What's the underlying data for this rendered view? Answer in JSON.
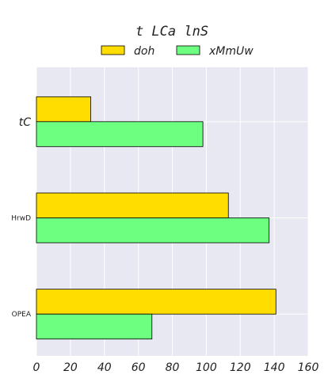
{
  "chart_data": {
    "type": "bar",
    "orientation": "horizontal",
    "title": "t LCa lnS",
    "categories": [
      "tC",
      "HrwD",
      "OPEA"
    ],
    "series": [
      {
        "name": "doh",
        "values": [
          32,
          113,
          141
        ],
        "color": "#ffdd00"
      },
      {
        "name": "xMmUw",
        "values": [
          98,
          137,
          68
        ],
        "color": "#6dff80"
      }
    ],
    "xlim": [
      0,
      160
    ],
    "xticks": [
      "0",
      "20",
      "40",
      "60",
      "80",
      "100",
      "120",
      "140",
      "160"
    ],
    "grid": true,
    "legend_position": "top-center",
    "background": "#e8e8f2"
  }
}
